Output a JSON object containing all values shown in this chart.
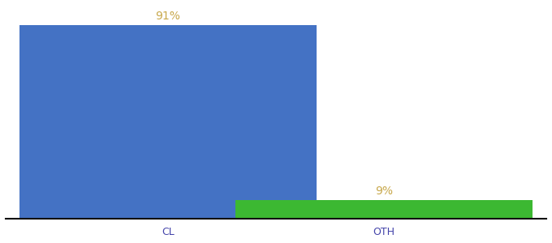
{
  "categories": [
    "CL",
    "OTH"
  ],
  "values": [
    91,
    9
  ],
  "bar_colors": [
    "#4472c4",
    "#3cb832"
  ],
  "label_color": "#c8a84b",
  "ylim": [
    0,
    100
  ],
  "background_color": "#ffffff",
  "label_fontsize": 10,
  "tick_fontsize": 9,
  "bar_width": 0.55,
  "x_positions": [
    0.3,
    0.7
  ]
}
